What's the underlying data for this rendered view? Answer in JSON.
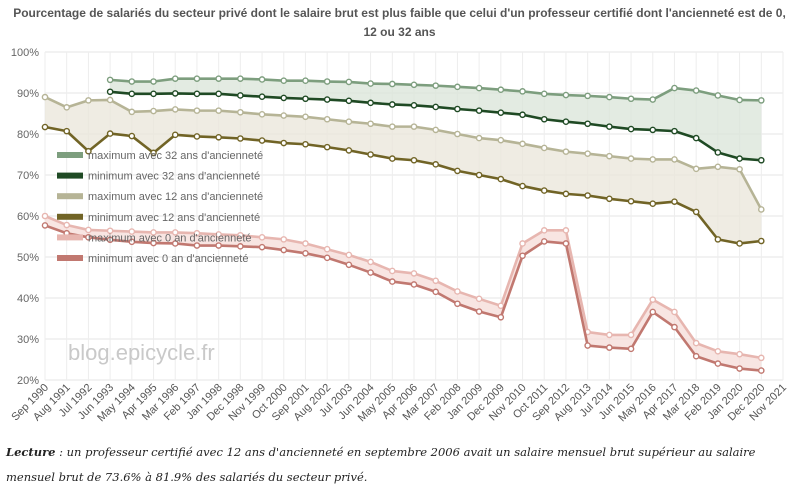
{
  "chart_data": {
    "type": "line",
    "title": "Pourcentage de salariés du secteur privé dont le salaire brut est plus faible que celui d'un professeur certifié dont l'ancienneté est de 0, 12 ou 32 ans",
    "xlabel": "",
    "ylabel": "",
    "ylim": [
      20,
      100
    ],
    "yticks": [
      "20%",
      "30%",
      "40%",
      "50%",
      "60%",
      "70%",
      "80%",
      "90%",
      "100%"
    ],
    "grid": true,
    "legend_position": "left-middle",
    "categories": [
      "Sep 1990",
      "Aug 1991",
      "Jul 1992",
      "Jun 1993",
      "May 1994",
      "Apr 1995",
      "Mar 1996",
      "Feb 1997",
      "Jan 1998",
      "Dec 1998",
      "Nov 1999",
      "Oct 2000",
      "Sep 2001",
      "Aug 2002",
      "Jul 2003",
      "Jun 2004",
      "May 2005",
      "Apr 2006",
      "Mar 2007",
      "Feb 2008",
      "Jan 2009",
      "Dec 2009",
      "Nov 2010",
      "Oct 2011",
      "Sep 2012",
      "Aug 2013",
      "Jul 2014",
      "Jun 2015",
      "May 2016",
      "Apr 2017",
      "Mar 2018",
      "Feb 2019",
      "Jan 2020",
      "Dec 2020",
      "Nov 2021"
    ],
    "series": [
      {
        "name": "maximum avec 32 ans d'ancienneté",
        "color": "#7d9e7e",
        "values": [
          null,
          null,
          null,
          93.2,
          92.8,
          92.8,
          93.5,
          93.5,
          93.5,
          93.5,
          93.3,
          93.0,
          93.0,
          92.8,
          92.7,
          92.3,
          92.2,
          92.0,
          91.8,
          91.5,
          91.2,
          90.8,
          90.4,
          89.8,
          89.5,
          89.3,
          89.0,
          88.6,
          88.4,
          91.2,
          90.6,
          89.4,
          88.3,
          88.2,
          null
        ]
      },
      {
        "name": "minimum avec 32 ans d'ancienneté",
        "color": "#1f4a24",
        "values": [
          null,
          null,
          null,
          90.3,
          89.8,
          89.8,
          89.9,
          89.8,
          89.8,
          89.4,
          89.1,
          88.8,
          88.6,
          88.4,
          88.1,
          87.6,
          87.2,
          87.0,
          86.6,
          86.1,
          85.7,
          85.2,
          84.7,
          83.6,
          83.0,
          82.5,
          81.8,
          81.2,
          81.0,
          80.7,
          79.0,
          75.5,
          74.0,
          73.6,
          null
        ]
      },
      {
        "name": "maximum avec 12 ans d'ancienneté",
        "color": "#b6b496",
        "values": [
          89.0,
          86.5,
          88.2,
          88.3,
          85.4,
          85.6,
          86.0,
          85.7,
          85.7,
          85.3,
          84.8,
          84.5,
          84.2,
          83.6,
          83.0,
          82.5,
          81.8,
          81.8,
          81.0,
          80.0,
          79.0,
          78.5,
          77.6,
          76.6,
          75.7,
          75.2,
          74.6,
          74.0,
          73.8,
          73.8,
          71.5,
          72.0,
          71.4,
          61.6,
          null
        ]
      },
      {
        "name": "minimum avec 12 ans d'ancienneté",
        "color": "#716426",
        "values": [
          81.7,
          80.7,
          75.8,
          80.1,
          79.5,
          75.4,
          79.8,
          79.4,
          79.2,
          78.9,
          78.4,
          77.8,
          77.5,
          76.8,
          76.0,
          75.0,
          74.0,
          73.6,
          72.6,
          71.0,
          70.0,
          69.0,
          67.3,
          66.2,
          65.4,
          65.0,
          64.2,
          63.6,
          63.0,
          63.5,
          61.0,
          54.3,
          53.3,
          53.9,
          null
        ]
      },
      {
        "name": "maximum avec 0 an d'ancienneté",
        "color": "#e7b6b0",
        "values": [
          60.0,
          57.8,
          56.6,
          56.4,
          56.2,
          56.0,
          56.0,
          55.8,
          55.5,
          55.3,
          54.8,
          54.3,
          53.3,
          51.9,
          50.5,
          48.8,
          46.6,
          46.0,
          44.2,
          41.6,
          39.8,
          38.1,
          53.3,
          56.5,
          56.5,
          31.7,
          31.0,
          31.0,
          39.6,
          36.6,
          29.0,
          27.0,
          26.3,
          25.4,
          null
        ]
      },
      {
        "name": "minimum avec 0 an d'ancienneté",
        "color": "#c17870",
        "values": [
          57.7,
          55.8,
          54.8,
          54.2,
          53.7,
          53.4,
          53.3,
          52.8,
          52.8,
          52.6,
          52.4,
          51.7,
          50.9,
          49.8,
          48.1,
          46.2,
          44.0,
          43.3,
          41.5,
          38.6,
          36.7,
          35.3,
          50.3,
          53.8,
          53.3,
          28.4,
          27.9,
          27.6,
          36.6,
          32.9,
          25.8,
          24.0,
          22.8,
          22.3,
          null
        ]
      }
    ]
  },
  "watermark": "blog.epicycle.fr",
  "caption": {
    "lead": "Lecture",
    "text": " : un professeur certifié avec 12 ans d'ancienneté en septembre 2006 avait un salaire mensuel brut supérieur au salaire mensuel brut de 73.6% à 81.9% des salariés du secteur privé."
  }
}
